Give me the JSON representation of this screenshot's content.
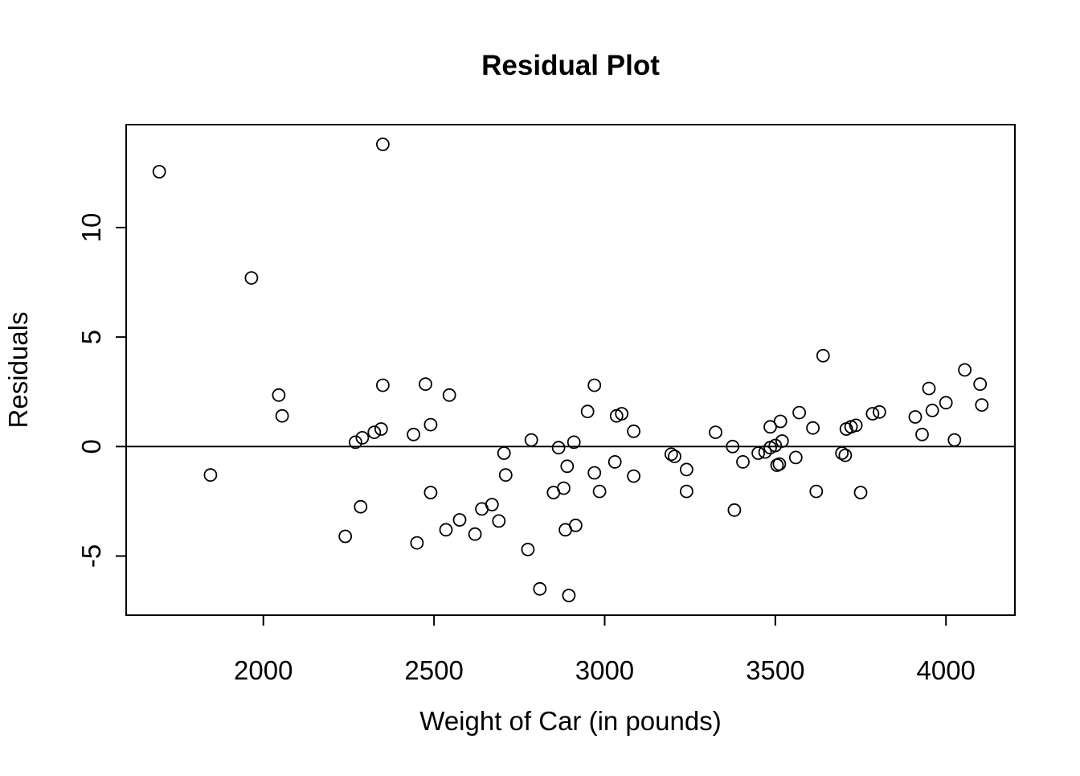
{
  "page": {
    "background_color": "#ffffff",
    "foreground_color": "#000000"
  },
  "chart_data": {
    "type": "scatter",
    "title": "Residual Plot",
    "xlabel": "Weight of Car (in pounds)",
    "ylabel": "Residuals",
    "x_ticks": [
      2000,
      2500,
      3000,
      3500,
      4000
    ],
    "y_ticks": [
      -5,
      0,
      5,
      10
    ],
    "xlim": [
      1598,
      4202
    ],
    "ylim": [
      -7.7,
      14.7
    ],
    "grid": "off",
    "legend": "none",
    "reference_line_y": 0,
    "marker": {
      "shape": "open-circle",
      "color": "#000000"
    },
    "points": [
      [
        1695,
        12.55
      ],
      [
        1845,
        -1.3
      ],
      [
        1965,
        7.7
      ],
      [
        2045,
        2.35
      ],
      [
        2055,
        1.4
      ],
      [
        2240,
        -4.1
      ],
      [
        2270,
        0.2
      ],
      [
        2285,
        -2.75
      ],
      [
        2290,
        0.4
      ],
      [
        2325,
        0.65
      ],
      [
        2345,
        0.8
      ],
      [
        2350,
        13.8
      ],
      [
        2350,
        2.8
      ],
      [
        2440,
        0.55
      ],
      [
        2450,
        -4.4
      ],
      [
        2475,
        2.85
      ],
      [
        2490,
        1.0
      ],
      [
        2490,
        -2.1
      ],
      [
        2535,
        -3.8
      ],
      [
        2545,
        2.35
      ],
      [
        2575,
        -3.35
      ],
      [
        2620,
        -4.0
      ],
      [
        2640,
        -2.85
      ],
      [
        2670,
        -2.65
      ],
      [
        2690,
        -3.4
      ],
      [
        2705,
        -0.3
      ],
      [
        2710,
        -1.3
      ],
      [
        2775,
        -4.7
      ],
      [
        2785,
        0.3
      ],
      [
        2810,
        -6.5
      ],
      [
        2850,
        -2.1
      ],
      [
        2865,
        -0.05
      ],
      [
        2880,
        -1.9
      ],
      [
        2885,
        -3.8
      ],
      [
        2890,
        -0.9
      ],
      [
        2895,
        -6.8
      ],
      [
        2910,
        0.2
      ],
      [
        2915,
        -3.6
      ],
      [
        2950,
        1.6
      ],
      [
        2970,
        2.8
      ],
      [
        2970,
        -1.2
      ],
      [
        2985,
        -2.05
      ],
      [
        3030,
        -0.7
      ],
      [
        3035,
        1.4
      ],
      [
        3050,
        1.5
      ],
      [
        3085,
        0.7
      ],
      [
        3085,
        -1.35
      ],
      [
        3195,
        -0.35
      ],
      [
        3205,
        -0.45
      ],
      [
        3240,
        -1.05
      ],
      [
        3240,
        -2.05
      ],
      [
        3325,
        0.65
      ],
      [
        3375,
        0.0
      ],
      [
        3380,
        -2.9
      ],
      [
        3405,
        -0.7
      ],
      [
        3450,
        -0.3
      ],
      [
        3470,
        -0.25
      ],
      [
        3485,
        -0.05
      ],
      [
        3485,
        0.9
      ],
      [
        3500,
        0.05
      ],
      [
        3505,
        -0.85
      ],
      [
        3512,
        -0.8
      ],
      [
        3515,
        1.15
      ],
      [
        3520,
        0.25
      ],
      [
        3560,
        -0.5
      ],
      [
        3570,
        1.55
      ],
      [
        3610,
        0.85
      ],
      [
        3620,
        -2.05
      ],
      [
        3640,
        4.15
      ],
      [
        3695,
        -0.3
      ],
      [
        3705,
        -0.4
      ],
      [
        3708,
        0.8
      ],
      [
        3722,
        0.9
      ],
      [
        3736,
        0.97
      ],
      [
        3750,
        -2.1
      ],
      [
        3785,
        1.5
      ],
      [
        3805,
        1.58
      ],
      [
        3910,
        1.35
      ],
      [
        3930,
        0.55
      ],
      [
        3950,
        2.65
      ],
      [
        3960,
        1.65
      ],
      [
        4000,
        2.0
      ],
      [
        4025,
        0.3
      ],
      [
        4055,
        3.5
      ],
      [
        4100,
        2.85
      ],
      [
        4105,
        1.9
      ]
    ]
  }
}
